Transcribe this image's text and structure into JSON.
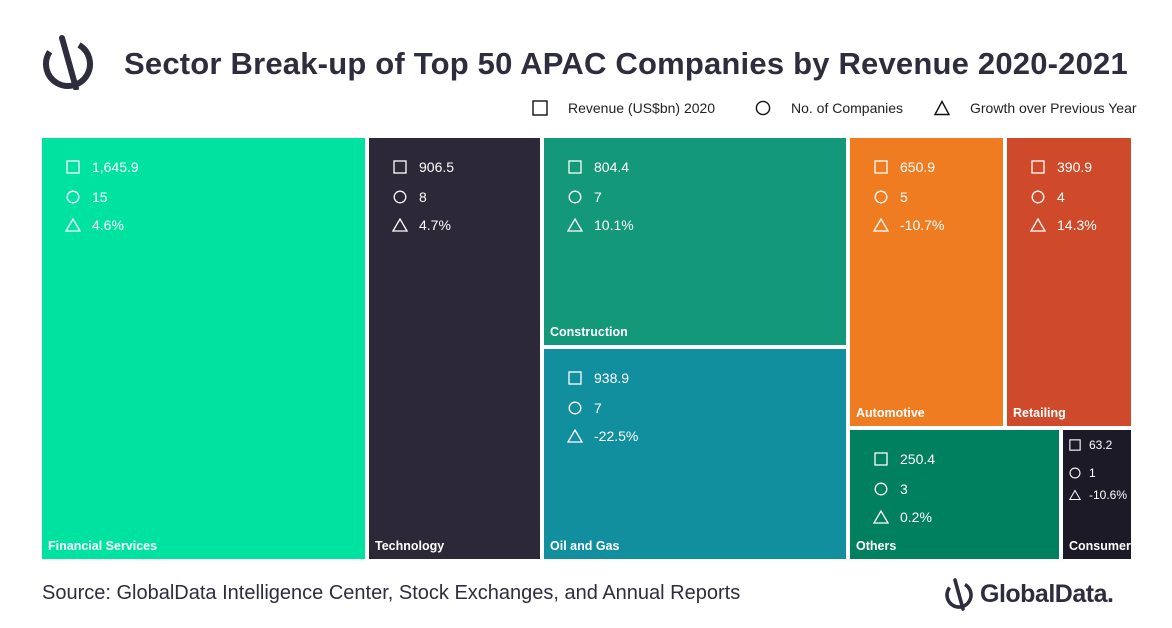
{
  "title": "Sector Break-up of Top 50 APAC Companies by Revenue 2020-2021",
  "legend": {
    "revenue": "Revenue (US$bn) 2020",
    "companies": "No. of Companies",
    "growth": "Growth over Previous Year"
  },
  "chart_data": {
    "type": "treemap",
    "metrics": [
      "Revenue (US$bn) 2020",
      "No. of Companies",
      "Growth over Previous Year"
    ],
    "sectors": [
      {
        "name": "Financial Services",
        "revenue": "1,645.9",
        "revenue_value": 1645.9,
        "companies": "15",
        "growth": "4.6%",
        "color": "#00e2a0"
      },
      {
        "name": "Technology",
        "revenue": "906.5",
        "revenue_value": 906.5,
        "companies": "8",
        "growth": "4.7%",
        "color": "#2c2838"
      },
      {
        "name": "Construction",
        "revenue": "804.4",
        "revenue_value": 804.4,
        "companies": "7",
        "growth": "10.1%",
        "color": "#14987a"
      },
      {
        "name": "Oil and Gas",
        "revenue": "938.9",
        "revenue_value": 938.9,
        "companies": "7",
        "growth": "-22.5%",
        "color": "#128f9f"
      },
      {
        "name": "Automotive",
        "revenue": "650.9",
        "revenue_value": 650.9,
        "companies": "5",
        "growth": "-10.7%",
        "color": "#f07c22"
      },
      {
        "name": "Retailing",
        "revenue": "390.9",
        "revenue_value": 390.9,
        "companies": "4",
        "growth": "14.3%",
        "color": "#cf4a2a"
      },
      {
        "name": "Others",
        "revenue": "250.4",
        "revenue_value": 250.4,
        "companies": "3",
        "growth": "0.2%",
        "color": "#00805e"
      },
      {
        "name": "Consumer",
        "revenue": "63.2",
        "revenue_value": 63.2,
        "companies": "1",
        "growth": "-10.6%",
        "color": "#1c1a26"
      }
    ]
  },
  "source": "Source: GlobalData Intelligence Center, Stock Exchanges, and Annual Reports",
  "brand": "GlobalData."
}
